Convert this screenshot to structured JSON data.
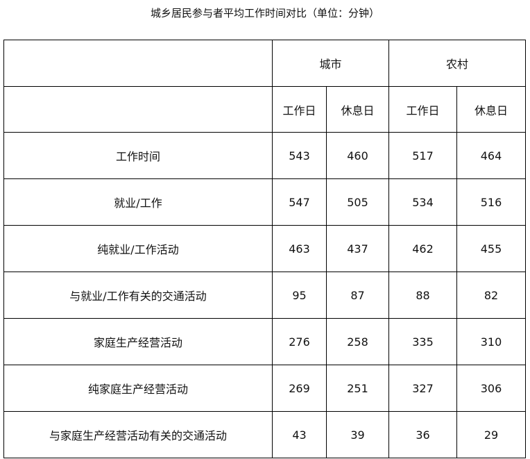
{
  "chart_data": {
    "type": "table",
    "title": "城乡居民参与者平均工作时间对比（单位：分钟）",
    "groups": [
      "城市",
      "农村"
    ],
    "columns": [
      "工作日",
      "休息日",
      "工作日",
      "休息日"
    ],
    "rows": [
      {
        "label": "工作时间",
        "values": [
          543,
          460,
          517,
          464
        ]
      },
      {
        "label": "就业/工作",
        "values": [
          547,
          505,
          534,
          516
        ]
      },
      {
        "label": "纯就业/工作活动",
        "values": [
          463,
          437,
          462,
          455
        ]
      },
      {
        "label": "与就业/工作有关的交通活动",
        "values": [
          95,
          87,
          88,
          82
        ]
      },
      {
        "label": "家庭生产经营活动",
        "values": [
          276,
          258,
          335,
          310
        ]
      },
      {
        "label": "纯家庭生产经营活动",
        "values": [
          269,
          251,
          327,
          306
        ]
      },
      {
        "label": "与家庭生产经营活动有关的交通活动",
        "values": [
          43,
          39,
          36,
          29
        ]
      }
    ]
  }
}
